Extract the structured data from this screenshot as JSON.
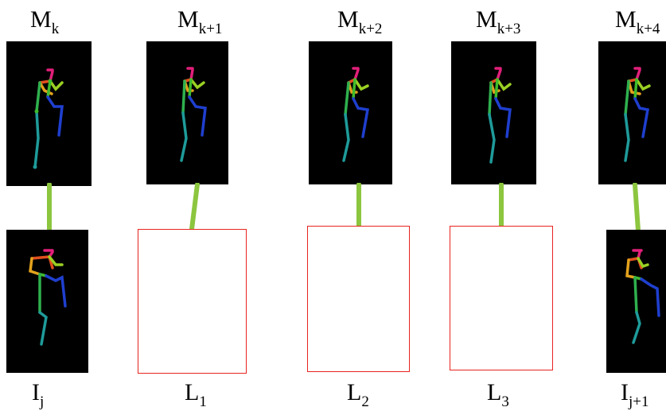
{
  "top_labels": [
    {
      "main": "M",
      "sub": "k"
    },
    {
      "main": "M",
      "sub": "k+1"
    },
    {
      "main": "M",
      "sub": "k+2"
    },
    {
      "main": "M",
      "sub": "k+3"
    },
    {
      "main": "M",
      "sub": "k+4"
    }
  ],
  "bottom_labels": [
    {
      "main": "I",
      "sub": "j"
    },
    {
      "main": "L",
      "sub": "1"
    },
    {
      "main": "L",
      "sub": "2"
    },
    {
      "main": "L",
      "sub": "3"
    },
    {
      "main": "I",
      "sub": "j+1"
    }
  ],
  "colors": {
    "panel_bg": "#000000",
    "empty_frame_border": "#e8231f",
    "link": "#8cc63f"
  },
  "pose_icon": "skeleton-pose-icon"
}
